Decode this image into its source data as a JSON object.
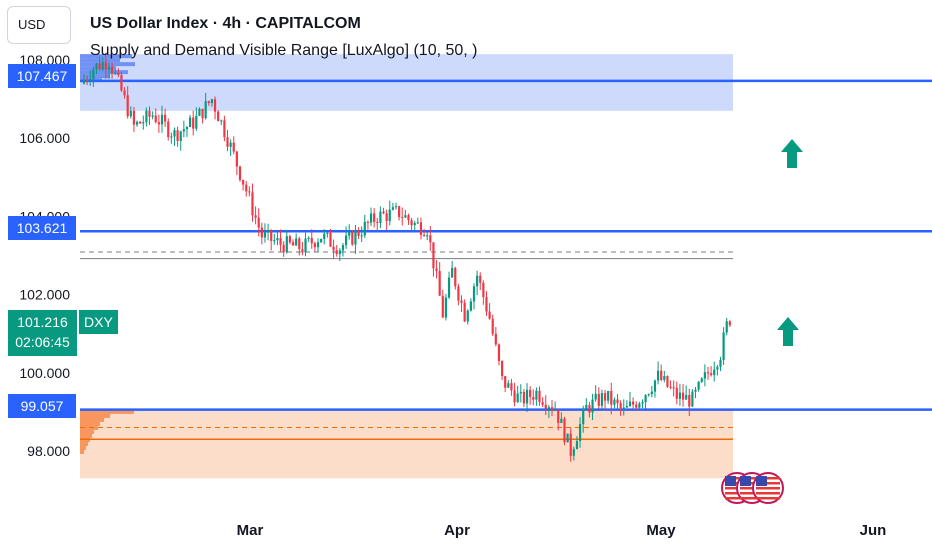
{
  "header": {
    "currency": "USD",
    "title": "US Dollar Index · 4h · CAPITALCOM",
    "indicator": "Supply and Demand Visible Range [LuxAlgo] (10, 50, )"
  },
  "price_scale": {
    "ticks": [
      "108.000",
      "106.000",
      "104.000",
      "102.000",
      "100.000",
      "98.000"
    ],
    "tick_values": [
      108,
      106,
      104,
      102,
      100,
      98
    ]
  },
  "time_scale": {
    "labels": [
      "Mar",
      "Apr",
      "May",
      "Jun"
    ]
  },
  "price_tags": {
    "supply_level": "107.467",
    "mid_level": "103.621",
    "demand_level": "99.057",
    "current_price": "101.216",
    "countdown": "02:06:45",
    "symbol": "DXY"
  },
  "colors": {
    "up": "#089981",
    "down": "#f23645",
    "level_line": "#2962ff",
    "supply_zone": "#c6d4fb",
    "demand_zone": "#fcd9c4",
    "demand_line": "#ef6c00",
    "up_arrow": "#089981"
  },
  "chart_data": {
    "type": "candlestick",
    "title": "US Dollar Index · 4h · CAPITALCOM",
    "y_range": [
      96.9,
      108.3
    ],
    "zones": [
      {
        "name": "supply",
        "low": 106.7,
        "high": 108.15
      },
      {
        "name": "equilibrium",
        "low": 102.9,
        "high": 103.1
      },
      {
        "name": "demand",
        "low": 97.3,
        "high": 99.05
      }
    ],
    "levels": [
      107.467,
      103.621,
      99.057
    ],
    "current": 101.216,
    "waypoints": [
      [
        107.4,
        0
      ],
      [
        107.8,
        4
      ],
      [
        108.0,
        9
      ],
      [
        107.2,
        13
      ],
      [
        106.3,
        17
      ],
      [
        106.6,
        23
      ],
      [
        106.1,
        30
      ],
      [
        106.4,
        36
      ],
      [
        107.0,
        42
      ],
      [
        106.0,
        47
      ],
      [
        104.9,
        52
      ],
      [
        103.5,
        58
      ],
      [
        103.3,
        64
      ],
      [
        103.2,
        71
      ],
      [
        103.5,
        77
      ],
      [
        103.2,
        83
      ],
      [
        103.6,
        89
      ],
      [
        104.0,
        95
      ],
      [
        104.1,
        102
      ],
      [
        103.8,
        107
      ],
      [
        103.7,
        111
      ],
      [
        101.5,
        116
      ],
      [
        102.6,
        119
      ],
      [
        101.5,
        123
      ],
      [
        102.5,
        127
      ],
      [
        101.4,
        131
      ],
      [
        99.8,
        135
      ],
      [
        99.3,
        141
      ],
      [
        99.5,
        146
      ],
      [
        99.1,
        152
      ],
      [
        98.0,
        157
      ],
      [
        99.1,
        162
      ],
      [
        99.4,
        168
      ],
      [
        99.0,
        174
      ],
      [
        99.4,
        180
      ],
      [
        99.9,
        185
      ],
      [
        99.4,
        191
      ],
      [
        99.3,
        196
      ],
      [
        100.0,
        201
      ],
      [
        100.5,
        205
      ],
      [
        101.2,
        207
      ]
    ],
    "candle_count": 208
  }
}
